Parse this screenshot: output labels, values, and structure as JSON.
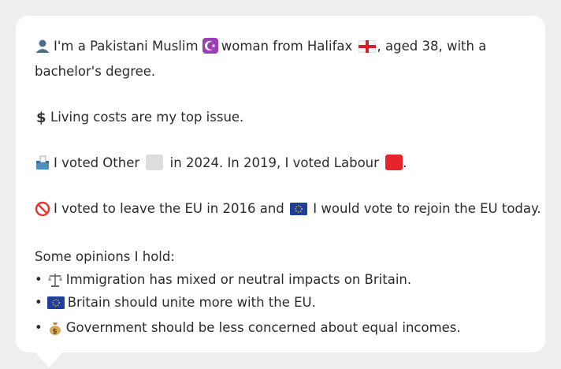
{
  "profile": {
    "pre_muslim": "I'm a Pakistani Muslim",
    "pre_halifax": "woman from Halifax",
    "post_halifax": ", aged 38, with a",
    "line2": "bachelor's degree.",
    "top_issue": "Living costs are my top issue.",
    "vote_a": "I voted Other",
    "vote_b": "in 2024. In 2019, I voted Labour",
    "vote_c": ".",
    "eu_a": "I voted to leave the EU in 2016 and",
    "eu_b": "I would vote to rejoin the EU today.",
    "opinions_heading": "Some opinions I hold:",
    "opinions": [
      {
        "bullet": "•",
        "icon": "scales-icon",
        "text": "Immigration has mixed or neutral impacts on Britain."
      },
      {
        "bullet": "•",
        "icon": "eu-flag-icon",
        "text": "Britain should unite more with the EU."
      },
      {
        "bullet": "•",
        "icon": "money-bag-icon",
        "text": "Government should be less concerned about equal incomes."
      }
    ]
  },
  "icons": {
    "person": "person-icon",
    "religion": "star-crescent-icon",
    "place_flag": "england-flag-icon",
    "issue": "dollar-sign-icon",
    "ballot": "ballot-box-icon",
    "other_party": "grey-square-icon",
    "labour_party": "red-square-icon",
    "leave": "prohibited-icon",
    "eu": "eu-flag-icon"
  },
  "colors": {
    "other_party": "#dddddd",
    "labour_party": "#e8242b",
    "religion_bg": "#9b3fb6",
    "eu_blue": "#1f3f9c",
    "prohibited": "#e53935"
  }
}
